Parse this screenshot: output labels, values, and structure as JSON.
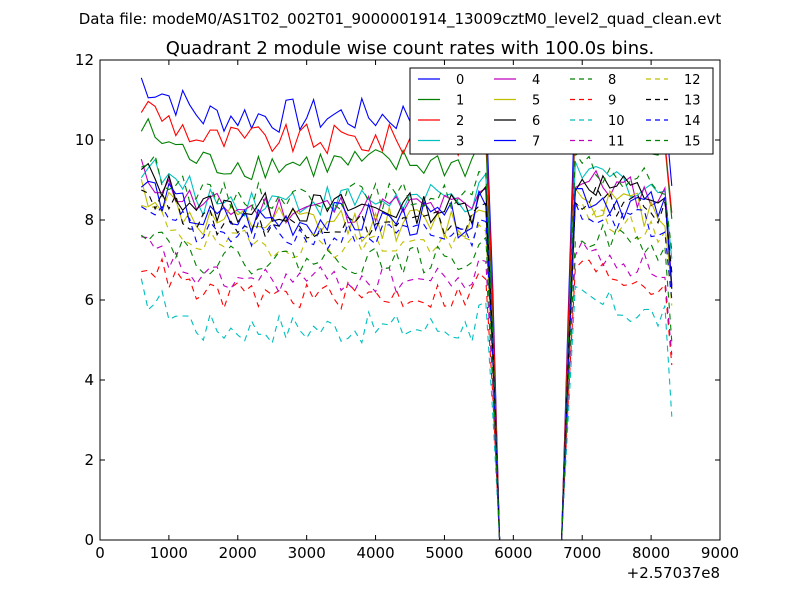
{
  "header": {
    "file_label": "Data file: modeM0/AS1T02_002T01_9000001914_13009cztM0_level2_quad_clean.evt"
  },
  "chart_data": {
    "type": "line",
    "title": "Quadrant 2 module wise count rates with 100.0s bins.",
    "xlabel": "",
    "ylabel": "",
    "xlim": [
      0,
      9000
    ],
    "ylim": [
      0,
      12
    ],
    "x_offset_label": "+2.57037e8",
    "xticks": [
      0,
      1000,
      2000,
      3000,
      4000,
      5000,
      6000,
      7000,
      8000,
      9000
    ],
    "yticks": [
      0,
      2,
      4,
      6,
      8,
      10,
      12
    ],
    "grid": false,
    "legend_position": "top-right",
    "legend_columns": 4,
    "x": [
      600,
      700,
      800,
      900,
      1000,
      1100,
      1200,
      1300,
      1400,
      1500,
      1600,
      1700,
      1800,
      1900,
      2000,
      2100,
      2200,
      2300,
      2400,
      2500,
      2600,
      2700,
      2800,
      2900,
      3000,
      3100,
      3200,
      3300,
      3400,
      3500,
      3600,
      3700,
      3800,
      3900,
      4000,
      4100,
      4200,
      4300,
      4400,
      4500,
      4600,
      4700,
      4800,
      4900,
      5000,
      5100,
      5200,
      5300,
      5400,
      5500,
      5600,
      5700,
      5800,
      5900,
      6000,
      6100,
      6200,
      6300,
      6400,
      6500,
      6600,
      6700,
      6800,
      6900,
      7000,
      7100,
      7200,
      7300,
      7400,
      7500,
      7600,
      7700,
      7800,
      7900,
      8000,
      8100,
      8200,
      8300
    ],
    "gap": {
      "drop_start": 5650,
      "zero_from": 5800,
      "zero_to": 6700,
      "rise_end": 6900
    },
    "series": [
      {
        "name": "0",
        "color": "#0000ff",
        "dash": "solid",
        "base": 10.6,
        "noise": 0.45
      },
      {
        "name": "1",
        "color": "#008000",
        "dash": "solid",
        "base": 9.4,
        "noise": 0.4
      },
      {
        "name": "2",
        "color": "#ff0000",
        "dash": "solid",
        "base": 10.0,
        "noise": 0.4
      },
      {
        "name": "3",
        "color": "#00bfbf",
        "dash": "solid",
        "base": 8.5,
        "noise": 0.4
      },
      {
        "name": "4",
        "color": "#bf00bf",
        "dash": "solid",
        "base": 8.3,
        "noise": 0.4
      },
      {
        "name": "5",
        "color": "#bfbf00",
        "dash": "solid",
        "base": 7.9,
        "noise": 0.45
      },
      {
        "name": "6",
        "color": "#000000",
        "dash": "solid",
        "base": 8.3,
        "noise": 0.4
      },
      {
        "name": "7",
        "color": "#0000ff",
        "dash": "solid",
        "base": 8.0,
        "noise": 0.45
      },
      {
        "name": "8",
        "color": "#008000",
        "dash": "dashed",
        "base": 8.6,
        "noise": 0.35
      },
      {
        "name": "9",
        "color": "#ff0000",
        "dash": "dashed",
        "base": 6.1,
        "noise": 0.35
      },
      {
        "name": "10",
        "color": "#00bfbf",
        "dash": "dashed",
        "base": 5.3,
        "noise": 0.4
      },
      {
        "name": "11",
        "color": "#bf00bf",
        "dash": "dashed",
        "base": 6.5,
        "noise": 0.35
      },
      {
        "name": "12",
        "color": "#bfbf00",
        "dash": "dashed",
        "base": 7.4,
        "noise": 0.35
      },
      {
        "name": "13",
        "color": "#000000",
        "dash": "dashed",
        "base": 7.9,
        "noise": 0.35
      },
      {
        "name": "14",
        "color": "#0000ff",
        "dash": "dashed",
        "base": 7.6,
        "noise": 0.35
      },
      {
        "name": "15",
        "color": "#008000",
        "dash": "dashed",
        "base": 7.0,
        "noise": 0.35
      }
    ]
  }
}
